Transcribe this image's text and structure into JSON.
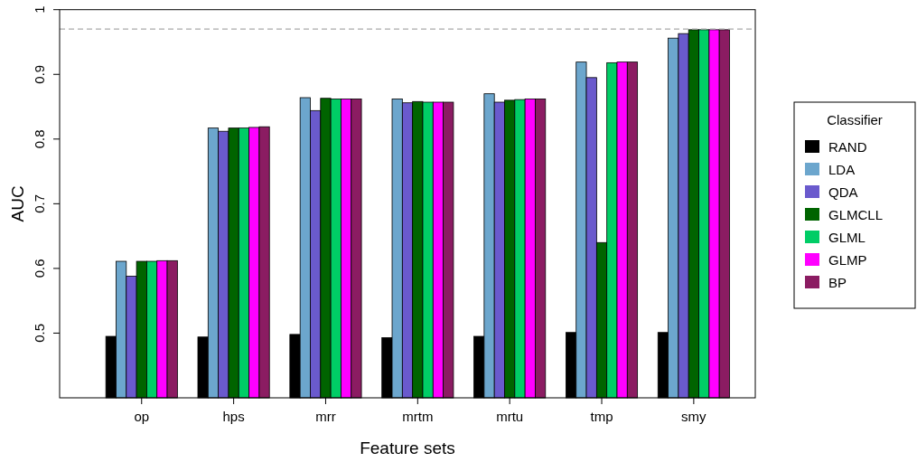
{
  "chart_data": {
    "type": "bar",
    "xlabel": "Feature sets",
    "ylabel": "AUC",
    "categories": [
      "op",
      "hps",
      "mrr",
      "mrtm",
      "mrtu",
      "tmp",
      "smy"
    ],
    "series": [
      {
        "name": "RAND",
        "color": "#000000",
        "values": [
          0.495,
          0.494,
          0.498,
          0.493,
          0.495,
          0.501,
          0.501
        ]
      },
      {
        "name": "LDA",
        "color": "#6ca6cd",
        "values": [
          0.611,
          0.817,
          0.864,
          0.862,
          0.87,
          0.919,
          0.956
        ]
      },
      {
        "name": "QDA",
        "color": "#6a5acd",
        "values": [
          0.588,
          0.812,
          0.844,
          0.856,
          0.857,
          0.895,
          0.963
        ]
      },
      {
        "name": "GLMCLL",
        "color": "#006400",
        "values": [
          0.611,
          0.817,
          0.863,
          0.858,
          0.86,
          0.64,
          0.969
        ]
      },
      {
        "name": "GLML",
        "color": "#00cd66",
        "values": [
          0.611,
          0.817,
          0.862,
          0.857,
          0.861,
          0.918,
          0.969
        ]
      },
      {
        "name": "GLMP",
        "color": "#ff00ff",
        "values": [
          0.612,
          0.818,
          0.862,
          0.857,
          0.862,
          0.919,
          0.969
        ]
      },
      {
        "name": "BP",
        "color": "#8b1c62",
        "values": [
          0.612,
          0.819,
          0.862,
          0.857,
          0.862,
          0.919,
          0.969
        ]
      }
    ],
    "ylim": [
      0.4,
      1
    ],
    "yticks": [
      0.5,
      0.6,
      0.7,
      0.8,
      0.9,
      1
    ],
    "ref_lines": [
      {
        "axis": "y",
        "value": 0.97,
        "color": "#aaaaaa",
        "line_style": "dashed"
      }
    ],
    "legend_title": "Classifier",
    "legend": "right",
    "grid": false
  }
}
